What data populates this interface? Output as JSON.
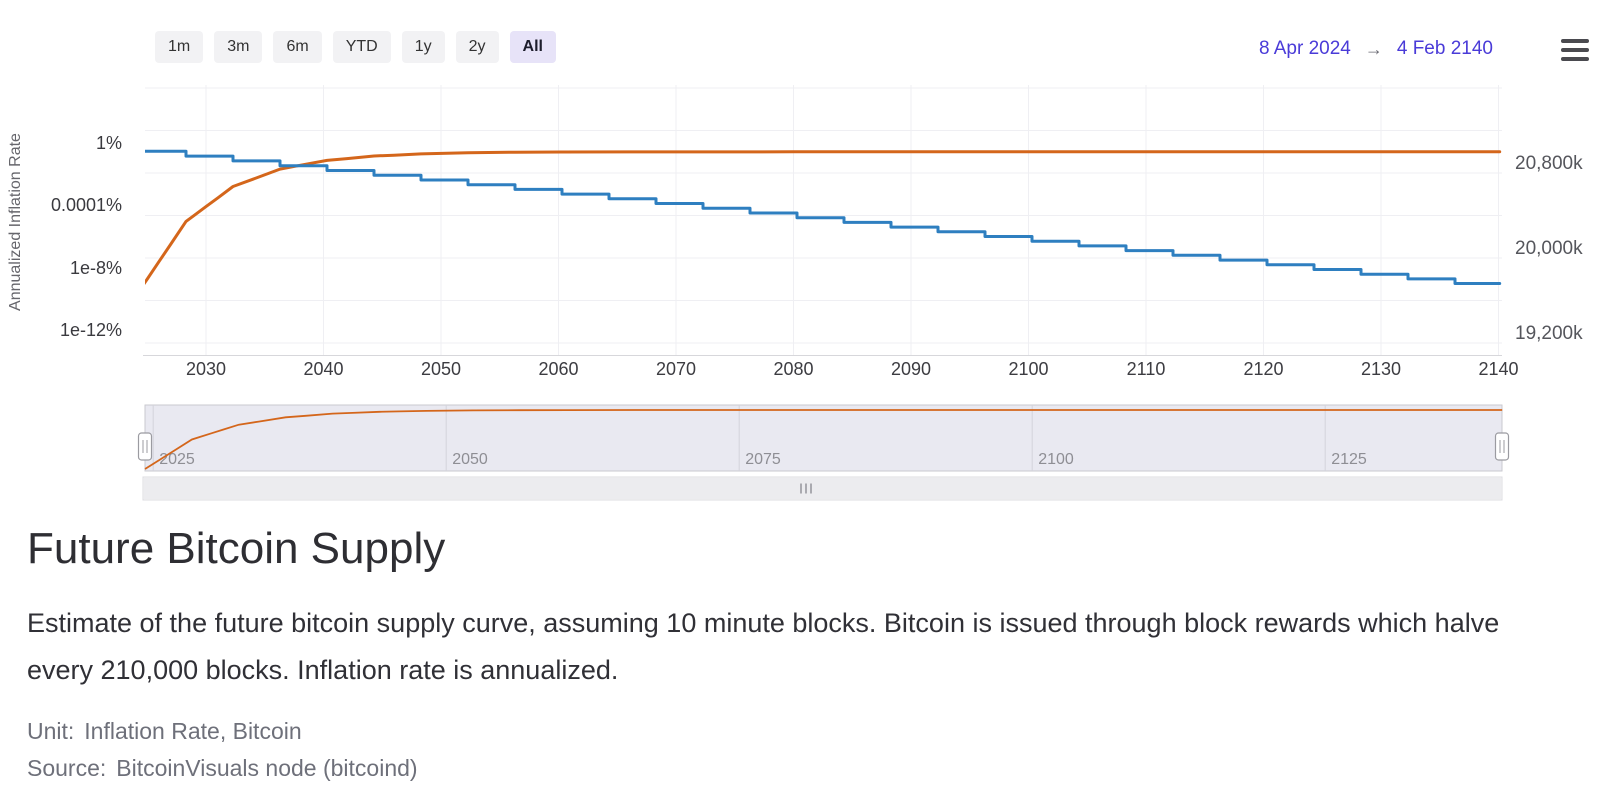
{
  "toolbar": {
    "range_buttons": [
      {
        "label": "1m",
        "active": false
      },
      {
        "label": "3m",
        "active": false
      },
      {
        "label": "6m",
        "active": false
      },
      {
        "label": "YTD",
        "active": false
      },
      {
        "label": "1y",
        "active": false
      },
      {
        "label": "2y",
        "active": false
      },
      {
        "label": "All",
        "active": true
      }
    ],
    "date_from": "8 Apr 2024",
    "arrow": "→",
    "date_to": "4 Feb 2140",
    "menu_icon": "hamburger-menu-icon"
  },
  "chart_data": {
    "type": "line",
    "title": "",
    "left_axis": {
      "title": "Annualized Inflation Rate",
      "scale": "log",
      "ticks": [
        "1%",
        "0.0001%",
        "1e-8%",
        "1e-12%"
      ],
      "unit": "%"
    },
    "right_axis": {
      "title": "",
      "scale": "linear",
      "ticks": [
        "20,800k",
        "20,000k",
        "19,200k"
      ],
      "unit": "thousand BTC"
    },
    "x_axis": {
      "range": [
        "2024.27",
        "2140.1"
      ],
      "ticks": [
        "2030",
        "2040",
        "2050",
        "2060",
        "2070",
        "2080",
        "2090",
        "2100",
        "2110",
        "2120",
        "2130",
        "2140"
      ]
    },
    "navigator": {
      "ticks": [
        "2025",
        "2050",
        "2075",
        "2100",
        "2125"
      ],
      "tick_years": [
        2025,
        2050,
        2075,
        2100,
        2125
      ]
    },
    "series": [
      {
        "name": "Annualized Inflation Rate",
        "axis": "left",
        "color": "#2e7fc0",
        "type": "step",
        "points_desc": "annualized inflation % at start of each halving epoch, halves every 210,000 blocks (~4 years)",
        "end_year": 2140.1,
        "points": [
          [
            2024.3,
            0.834
          ],
          [
            2028.3,
            0.404
          ],
          [
            2032.3,
            0.199
          ],
          [
            2036.3,
            0.0985
          ],
          [
            2040.3,
            0.0488
          ],
          [
            2044.3,
            0.0242
          ],
          [
            2048.3,
            0.012
          ],
          [
            2052.3,
            0.00597
          ],
          [
            2056.3,
            0.00297
          ],
          [
            2060.3,
            0.00148
          ],
          [
            2064.3,
            0.00074
          ],
          [
            2068.3,
            0.00037
          ],
          [
            2072.3,
            0.000184
          ],
          [
            2076.3,
            9.2e-05
          ],
          [
            2080.3,
            4.6e-05
          ],
          [
            2084.3,
            2.29e-05
          ],
          [
            2088.3,
            1.14e-05
          ],
          [
            2092.3,
            5.7e-06
          ],
          [
            2096.3,
            2.85e-06
          ],
          [
            2100.3,
            1.42e-06
          ],
          [
            2104.3,
            7.1e-07
          ],
          [
            2108.3,
            3.55e-07
          ],
          [
            2112.3,
            1.77e-07
          ],
          [
            2116.3,
            8.8e-08
          ],
          [
            2120.3,
            4.4e-08
          ],
          [
            2124.3,
            2.2e-08
          ],
          [
            2128.3,
            1.1e-08
          ],
          [
            2132.3,
            5.5e-09
          ],
          [
            2136.3,
            2.75e-09
          ]
        ]
      },
      {
        "name": "Bitcoin Supply",
        "axis": "right",
        "color": "#d4661b",
        "type": "line",
        "points_desc": "cumulative bitcoin supply in thousands of BTC, asymptote 21,000k",
        "points": [
          [
            2024.3,
            19688
          ],
          [
            2025,
            19802
          ],
          [
            2026,
            19966
          ],
          [
            2027,
            20131
          ],
          [
            2028.3,
            20344
          ],
          [
            2029,
            20402
          ],
          [
            2030,
            20484
          ],
          [
            2031,
            20566
          ],
          [
            2032.3,
            20673
          ],
          [
            2034,
            20742
          ],
          [
            2036.3,
            20837
          ],
          [
            2038,
            20872
          ],
          [
            2040.3,
            20919
          ],
          [
            2042,
            20936
          ],
          [
            2044.3,
            20960
          ],
          [
            2046,
            20968
          ],
          [
            2048.3,
            20980
          ],
          [
            2052.3,
            20991
          ],
          [
            2056.3,
            20996
          ],
          [
            2060.3,
            20998
          ],
          [
            2066,
            20999
          ],
          [
            2080,
            21000
          ],
          [
            2140.1,
            21000
          ]
        ]
      }
    ]
  },
  "page": {
    "title": "Future Bitcoin Supply",
    "description": "Estimate of the future bitcoin supply curve, assuming 10 minute blocks. Bitcoin is issued through block rewards which halve every 210,000 blocks. Inflation rate is annualized.",
    "unit_label": "Unit:",
    "unit_value": "Inflation Rate, Bitcoin",
    "source_label": "Source:",
    "source_value": "BitcoinVisuals node (bitcoind)"
  },
  "colors": {
    "accent_dates": "#4a3bd8",
    "inflation_line": "#2e7fc0",
    "supply_line": "#d4661b",
    "active_button_bg": "#e7e3f8",
    "button_bg": "#f2f2f4",
    "navigator_bg": "#e9e9f1"
  }
}
